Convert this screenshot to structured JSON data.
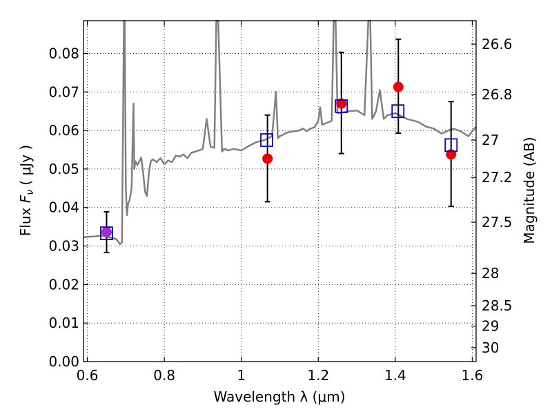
{
  "chart_data": {
    "type": "scatter",
    "xlabel": "Wavelength  λ (μm)",
    "ylabel": "Flux  F_ν  ( μJy )",
    "ylabel_right": "Magnitude (AB)",
    "xlim": [
      0.59,
      1.61
    ],
    "ylim": [
      0.0,
      0.0885
    ],
    "grid": true,
    "x_ticks": [
      "0.6",
      "0.8",
      "1",
      "1.2",
      "1.4",
      "1.6"
    ],
    "x_tick_values": [
      0.6,
      0.8,
      1.0,
      1.2,
      1.4,
      1.6
    ],
    "y_ticks": [
      "0.00",
      "0.01",
      "0.02",
      "0.03",
      "0.04",
      "0.05",
      "0.06",
      "0.07",
      "0.08"
    ],
    "y_tick_values": [
      0.0,
      0.01,
      0.02,
      0.03,
      0.04,
      0.05,
      0.06,
      0.07,
      0.08
    ],
    "right_ticks": [
      {
        "label": "26.6",
        "flux": 0.0824
      },
      {
        "label": "26.8",
        "flux": 0.0693
      },
      {
        "label": "27",
        "flux": 0.0575
      },
      {
        "label": "27.2",
        "flux": 0.0478
      },
      {
        "label": "27.5",
        "flux": 0.0362
      },
      {
        "label": "28",
        "flux": 0.0229
      },
      {
        "label": "28.5",
        "flux": 0.0145
      },
      {
        "label": "29",
        "flux": 0.0092
      },
      {
        "label": "30",
        "flux": 0.0036
      }
    ],
    "series": [
      {
        "kind": "model_spectrum",
        "color": "#808080",
        "x": [
          0.59,
          0.62,
          0.64,
          0.66,
          0.675,
          0.685,
          0.69,
          0.695,
          0.697,
          0.7,
          0.703,
          0.706,
          0.71,
          0.715,
          0.72,
          0.722,
          0.725,
          0.73,
          0.74,
          0.745,
          0.75,
          0.755,
          0.76,
          0.765,
          0.77,
          0.78,
          0.79,
          0.8,
          0.81,
          0.82,
          0.83,
          0.84,
          0.85,
          0.86,
          0.87,
          0.88,
          0.9,
          0.91,
          0.92,
          0.93,
          0.935,
          0.94,
          0.95,
          0.955,
          0.957,
          0.96,
          0.965,
          0.98,
          1.0,
          1.02,
          1.04,
          1.06,
          1.08,
          1.09,
          1.095,
          1.1,
          1.12,
          1.15,
          1.16,
          1.17,
          1.18,
          1.19,
          1.2,
          1.205,
          1.21,
          1.235,
          1.24,
          1.245,
          1.25,
          1.28,
          1.3,
          1.32,
          1.33,
          1.335,
          1.34,
          1.35,
          1.36,
          1.37,
          1.38,
          1.4,
          1.43,
          1.46,
          1.48,
          1.5,
          1.52,
          1.55,
          1.57,
          1.59,
          1.61
        ],
        "values": [
          0.0323,
          0.0325,
          0.0327,
          0.0322,
          0.0318,
          0.0305,
          0.031,
          0.0885,
          0.0885,
          0.045,
          0.038,
          0.041,
          0.042,
          0.045,
          0.067,
          0.05,
          0.052,
          0.051,
          0.053,
          0.049,
          0.044,
          0.043,
          0.049,
          0.052,
          0.0525,
          0.0518,
          0.0528,
          0.0512,
          0.0522,
          0.0518,
          0.0535,
          0.0532,
          0.0538,
          0.0528,
          0.0542,
          0.0545,
          0.0552,
          0.063,
          0.0558,
          0.0555,
          0.0885,
          0.0885,
          0.0545,
          0.0552,
          0.055,
          0.0552,
          0.0548,
          0.0552,
          0.0548,
          0.056,
          0.057,
          0.0575,
          0.0585,
          0.07,
          0.058,
          0.0585,
          0.0595,
          0.06,
          0.0605,
          0.0598,
          0.0605,
          0.0608,
          0.0625,
          0.066,
          0.0615,
          0.0625,
          0.0885,
          0.0885,
          0.0645,
          0.065,
          0.0652,
          0.064,
          0.0885,
          0.0885,
          0.063,
          0.065,
          0.0705,
          0.063,
          0.064,
          0.0645,
          0.063,
          0.0622,
          0.061,
          0.0605,
          0.0592,
          0.0605,
          0.0598,
          0.0585,
          0.061
        ]
      },
      {
        "kind": "model_photometry",
        "marker": "open-square",
        "color": "#0000cc",
        "x": [
          0.65,
          1.066,
          1.26,
          1.407,
          1.545
        ],
        "values": [
          0.0333,
          0.0575,
          0.0663,
          0.065,
          0.0562
        ]
      },
      {
        "kind": "observed",
        "marker": "filled-circle",
        "color": "#ee0000",
        "x": [
          0.65,
          1.068,
          1.26,
          1.408,
          1.545
        ],
        "values": [
          0.0336,
          0.0527,
          0.067,
          0.0713,
          0.0538
        ],
        "err_low": [
          0.0283,
          0.0415,
          0.054,
          0.0593,
          0.0403
        ],
        "err_high": [
          0.0389,
          0.064,
          0.0803,
          0.0837,
          0.0675
        ]
      }
    ],
    "overlap_color": "#9933cc"
  }
}
